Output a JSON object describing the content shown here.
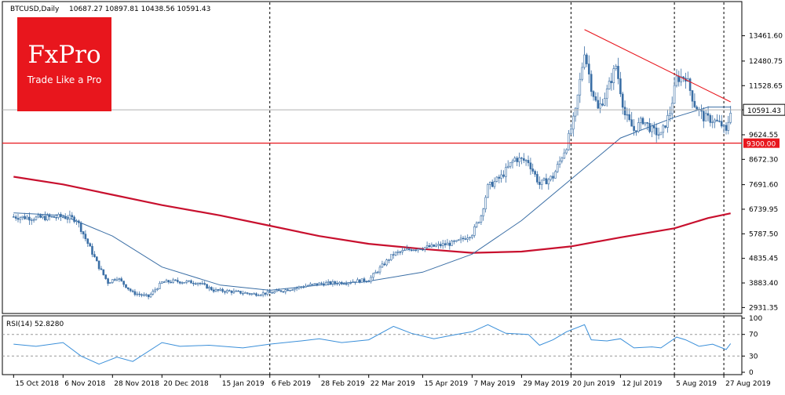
{
  "header": {
    "symbol_label": "BTCUSD,Daily",
    "ohlc_text": "10687.27 10897.81 10438.56 10591.43"
  },
  "logo": {
    "brand": "FxPro",
    "tagline": "Trade Like a Pro",
    "color": "#e8161d"
  },
  "chart_data": {
    "type": "candlestick",
    "y_ticks": [
      "13461.60",
      "12480.75",
      "11528.65",
      "10591.43",
      "9624.55",
      "8672.30",
      "7691.60",
      "6739.95",
      "5787.50",
      "4835.45",
      "3883.40",
      "2931.35"
    ],
    "price_ylim": [
      2700,
      14300
    ],
    "current_price": {
      "value": 10591.43,
      "label": "10591.43"
    },
    "support_line": {
      "value": 9300.0,
      "label": "9300.00",
      "color": "#e8161d"
    },
    "x_ticks": [
      "15 Oct 2018",
      "6 Nov 2018",
      "28 Nov 2018",
      "20 Dec 2018",
      "15 Jan 2019",
      "6 Feb 2019",
      "28 Feb 2019",
      "22 Mar 2019",
      "15 Apr 2019",
      "7 May 2019",
      "29 May 2019",
      "20 Jun 2019",
      "12 Jul 2019",
      "5 Aug 2019",
      "27 Aug 2019"
    ],
    "vertical_markers": [
      "6 Feb 2019",
      "20 Jun 2019",
      "5 Aug 2019",
      "27 Aug 2019"
    ],
    "trendline": {
      "from": {
        "date": "2019-06-26",
        "price": 13700
      },
      "to": {
        "date": "2019-08-30",
        "price": 10900
      },
      "color": "#e8161d"
    },
    "candle_color": "#3a6ea5",
    "sma_short_color": "#3a6ea5",
    "sma_long_color": "#c8102e",
    "price_path": [
      [
        "2018-10-15",
        6450
      ],
      [
        "2018-10-25",
        6400
      ],
      [
        "2018-11-06",
        6450
      ],
      [
        "2018-11-12",
        6350
      ],
      [
        "2018-11-16",
        5600
      ],
      [
        "2018-11-22",
        4500
      ],
      [
        "2018-11-26",
        3900
      ],
      [
        "2018-11-30",
        4100
      ],
      [
        "2018-12-07",
        3500
      ],
      [
        "2018-12-14",
        3350
      ],
      [
        "2018-12-20",
        3900
      ],
      [
        "2018-12-25",
        3950
      ],
      [
        "2019-01-05",
        3900
      ],
      [
        "2019-01-12",
        3600
      ],
      [
        "2019-01-20",
        3550
      ],
      [
        "2019-01-30",
        3450
      ],
      [
        "2019-02-06",
        3500
      ],
      [
        "2019-02-15",
        3650
      ],
      [
        "2019-02-24",
        3800
      ],
      [
        "2019-02-28",
        3850
      ],
      [
        "2019-03-10",
        3900
      ],
      [
        "2019-03-22",
        4000
      ],
      [
        "2019-04-02",
        5000
      ],
      [
        "2019-04-10",
        5200
      ],
      [
        "2019-04-20",
        5300
      ],
      [
        "2019-04-30",
        5450
      ],
      [
        "2019-05-07",
        5800
      ],
      [
        "2019-05-11",
        6500
      ],
      [
        "2019-05-14",
        7600
      ],
      [
        "2019-05-20",
        8000
      ],
      [
        "2019-05-26",
        8700
      ],
      [
        "2019-06-01",
        8600
      ],
      [
        "2019-06-06",
        7700
      ],
      [
        "2019-06-12",
        8000
      ],
      [
        "2019-06-18",
        9200
      ],
      [
        "2019-06-22",
        10500
      ],
      [
        "2019-06-26",
        12900
      ],
      [
        "2019-06-29",
        11500
      ],
      [
        "2019-07-02",
        10600
      ],
      [
        "2019-07-06",
        11300
      ],
      [
        "2019-07-10",
        12300
      ],
      [
        "2019-07-14",
        10400
      ],
      [
        "2019-07-18",
        9800
      ],
      [
        "2019-07-22",
        10200
      ],
      [
        "2019-07-26",
        9800
      ],
      [
        "2019-07-30",
        9600
      ],
      [
        "2019-08-03",
        10500
      ],
      [
        "2019-08-06",
        11800
      ],
      [
        "2019-08-10",
        11900
      ],
      [
        "2019-08-14",
        10800
      ],
      [
        "2019-08-18",
        10300
      ],
      [
        "2019-08-22",
        10200
      ],
      [
        "2019-08-26",
        10000
      ],
      [
        "2019-08-28",
        9700
      ],
      [
        "2019-08-30",
        10600
      ]
    ],
    "sma_short_path": [
      [
        "2018-10-15",
        6600
      ],
      [
        "2018-11-06",
        6500
      ],
      [
        "2018-11-28",
        5700
      ],
      [
        "2018-12-20",
        4500
      ],
      [
        "2019-01-15",
        3800
      ],
      [
        "2019-02-06",
        3600
      ],
      [
        "2019-02-28",
        3800
      ],
      [
        "2019-03-22",
        3950
      ],
      [
        "2019-04-15",
        4300
      ],
      [
        "2019-05-07",
        5000
      ],
      [
        "2019-05-29",
        6300
      ],
      [
        "2019-06-20",
        7900
      ],
      [
        "2019-07-12",
        9500
      ],
      [
        "2019-08-05",
        10300
      ],
      [
        "2019-08-20",
        10700
      ],
      [
        "2019-08-30",
        10700
      ]
    ],
    "sma_long_path": [
      [
        "2018-10-15",
        8000
      ],
      [
        "2018-11-06",
        7700
      ],
      [
        "2018-11-28",
        7300
      ],
      [
        "2018-12-20",
        6900
      ],
      [
        "2019-01-15",
        6500
      ],
      [
        "2019-02-06",
        6100
      ],
      [
        "2019-02-28",
        5700
      ],
      [
        "2019-03-22",
        5400
      ],
      [
        "2019-04-15",
        5200
      ],
      [
        "2019-05-07",
        5050
      ],
      [
        "2019-05-29",
        5100
      ],
      [
        "2019-06-20",
        5300
      ],
      [
        "2019-07-12",
        5650
      ],
      [
        "2019-08-05",
        6000
      ],
      [
        "2019-08-20",
        6400
      ],
      [
        "2019-08-30",
        6580
      ]
    ],
    "rsi": {
      "label": "RSI(14) 52.8280",
      "levels_labels": [
        "100",
        "70",
        "30",
        "0"
      ],
      "levels": [
        100,
        70,
        30,
        0
      ],
      "path": [
        [
          "2018-10-15",
          52
        ],
        [
          "2018-10-25",
          48
        ],
        [
          "2018-11-06",
          55
        ],
        [
          "2018-11-14",
          30
        ],
        [
          "2018-11-22",
          15
        ],
        [
          "2018-11-30",
          28
        ],
        [
          "2018-12-07",
          20
        ],
        [
          "2018-12-20",
          55
        ],
        [
          "2018-12-28",
          48
        ],
        [
          "2019-01-10",
          50
        ],
        [
          "2019-01-25",
          45
        ],
        [
          "2019-02-06",
          52
        ],
        [
          "2019-02-20",
          58
        ],
        [
          "2019-02-28",
          62
        ],
        [
          "2019-03-10",
          55
        ],
        [
          "2019-03-22",
          60
        ],
        [
          "2019-04-02",
          85
        ],
        [
          "2019-04-10",
          72
        ],
        [
          "2019-04-20",
          62
        ],
        [
          "2019-04-30",
          70
        ],
        [
          "2019-05-07",
          75
        ],
        [
          "2019-05-14",
          88
        ],
        [
          "2019-05-22",
          72
        ],
        [
          "2019-06-01",
          70
        ],
        [
          "2019-06-06",
          50
        ],
        [
          "2019-06-12",
          60
        ],
        [
          "2019-06-18",
          75
        ],
        [
          "2019-06-26",
          88
        ],
        [
          "2019-06-29",
          60
        ],
        [
          "2019-07-06",
          58
        ],
        [
          "2019-07-12",
          62
        ],
        [
          "2019-07-18",
          45
        ],
        [
          "2019-07-26",
          47
        ],
        [
          "2019-07-30",
          45
        ],
        [
          "2019-08-06",
          65
        ],
        [
          "2019-08-10",
          60
        ],
        [
          "2019-08-16",
          48
        ],
        [
          "2019-08-22",
          52
        ],
        [
          "2019-08-28",
          42
        ],
        [
          "2019-08-30",
          53
        ]
      ]
    }
  }
}
